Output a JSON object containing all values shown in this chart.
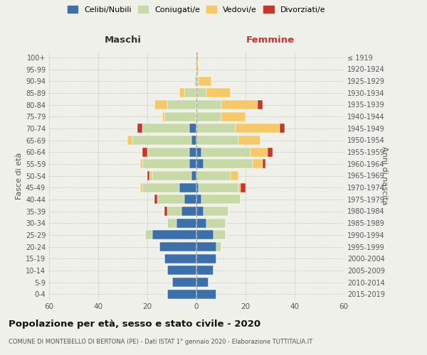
{
  "age_groups": [
    "0-4",
    "5-9",
    "10-14",
    "15-19",
    "20-24",
    "25-29",
    "30-34",
    "35-39",
    "40-44",
    "45-49",
    "50-54",
    "55-59",
    "60-64",
    "65-69",
    "70-74",
    "75-79",
    "80-84",
    "85-89",
    "90-94",
    "95-99",
    "100+"
  ],
  "birth_years": [
    "2015-2019",
    "2010-2014",
    "2005-2009",
    "2000-2004",
    "1995-1999",
    "1990-1994",
    "1985-1989",
    "1980-1984",
    "1975-1979",
    "1970-1974",
    "1965-1969",
    "1960-1964",
    "1955-1959",
    "1950-1954",
    "1945-1949",
    "1940-1944",
    "1935-1939",
    "1930-1934",
    "1925-1929",
    "1920-1924",
    "≤ 1919"
  ],
  "male": {
    "celibi": [
      12,
      10,
      12,
      13,
      15,
      18,
      8,
      6,
      5,
      7,
      2,
      3,
      3,
      2,
      3,
      0,
      0,
      0,
      0,
      0,
      0
    ],
    "coniugati": [
      0,
      0,
      0,
      0,
      0,
      3,
      4,
      6,
      11,
      15,
      16,
      19,
      17,
      24,
      19,
      13,
      12,
      5,
      1,
      0,
      0
    ],
    "vedovi": [
      0,
      0,
      0,
      0,
      0,
      0,
      0,
      0,
      0,
      1,
      1,
      1,
      0,
      2,
      0,
      1,
      5,
      2,
      0,
      0,
      0
    ],
    "divorziati": [
      0,
      0,
      0,
      0,
      0,
      0,
      0,
      1,
      1,
      0,
      1,
      0,
      2,
      0,
      2,
      0,
      0,
      0,
      0,
      0,
      0
    ]
  },
  "female": {
    "nubili": [
      8,
      5,
      7,
      8,
      8,
      7,
      4,
      3,
      2,
      1,
      0,
      3,
      2,
      0,
      0,
      0,
      0,
      0,
      0,
      0,
      0
    ],
    "coniugate": [
      0,
      0,
      0,
      0,
      2,
      5,
      8,
      10,
      16,
      16,
      14,
      20,
      20,
      17,
      16,
      10,
      10,
      4,
      1,
      0,
      0
    ],
    "vedove": [
      0,
      0,
      0,
      0,
      0,
      0,
      0,
      0,
      0,
      1,
      3,
      4,
      7,
      9,
      18,
      10,
      15,
      10,
      5,
      1,
      1
    ],
    "divorziate": [
      0,
      0,
      0,
      0,
      0,
      0,
      0,
      0,
      0,
      2,
      0,
      1,
      2,
      0,
      2,
      0,
      2,
      0,
      0,
      0,
      0
    ]
  },
  "color_celibi": "#3d6fa8",
  "color_coniugati": "#c8d9a8",
  "color_vedovi": "#f5c96a",
  "color_divorziati": "#c0392b",
  "title": "Popolazione per età, sesso e stato civile - 2020",
  "subtitle": "COMUNE DI MONTEBELLO DI BERTONA (PE) - Dati ISTAT 1° gennaio 2020 - Elaborazione TUTTITALIA.IT",
  "xlabel_left": "Maschi",
  "xlabel_right": "Femmine",
  "ylabel_left": "Fasce di età",
  "ylabel_right": "Anni di nascita",
  "xlim": 60,
  "background": "#f0f0eb"
}
